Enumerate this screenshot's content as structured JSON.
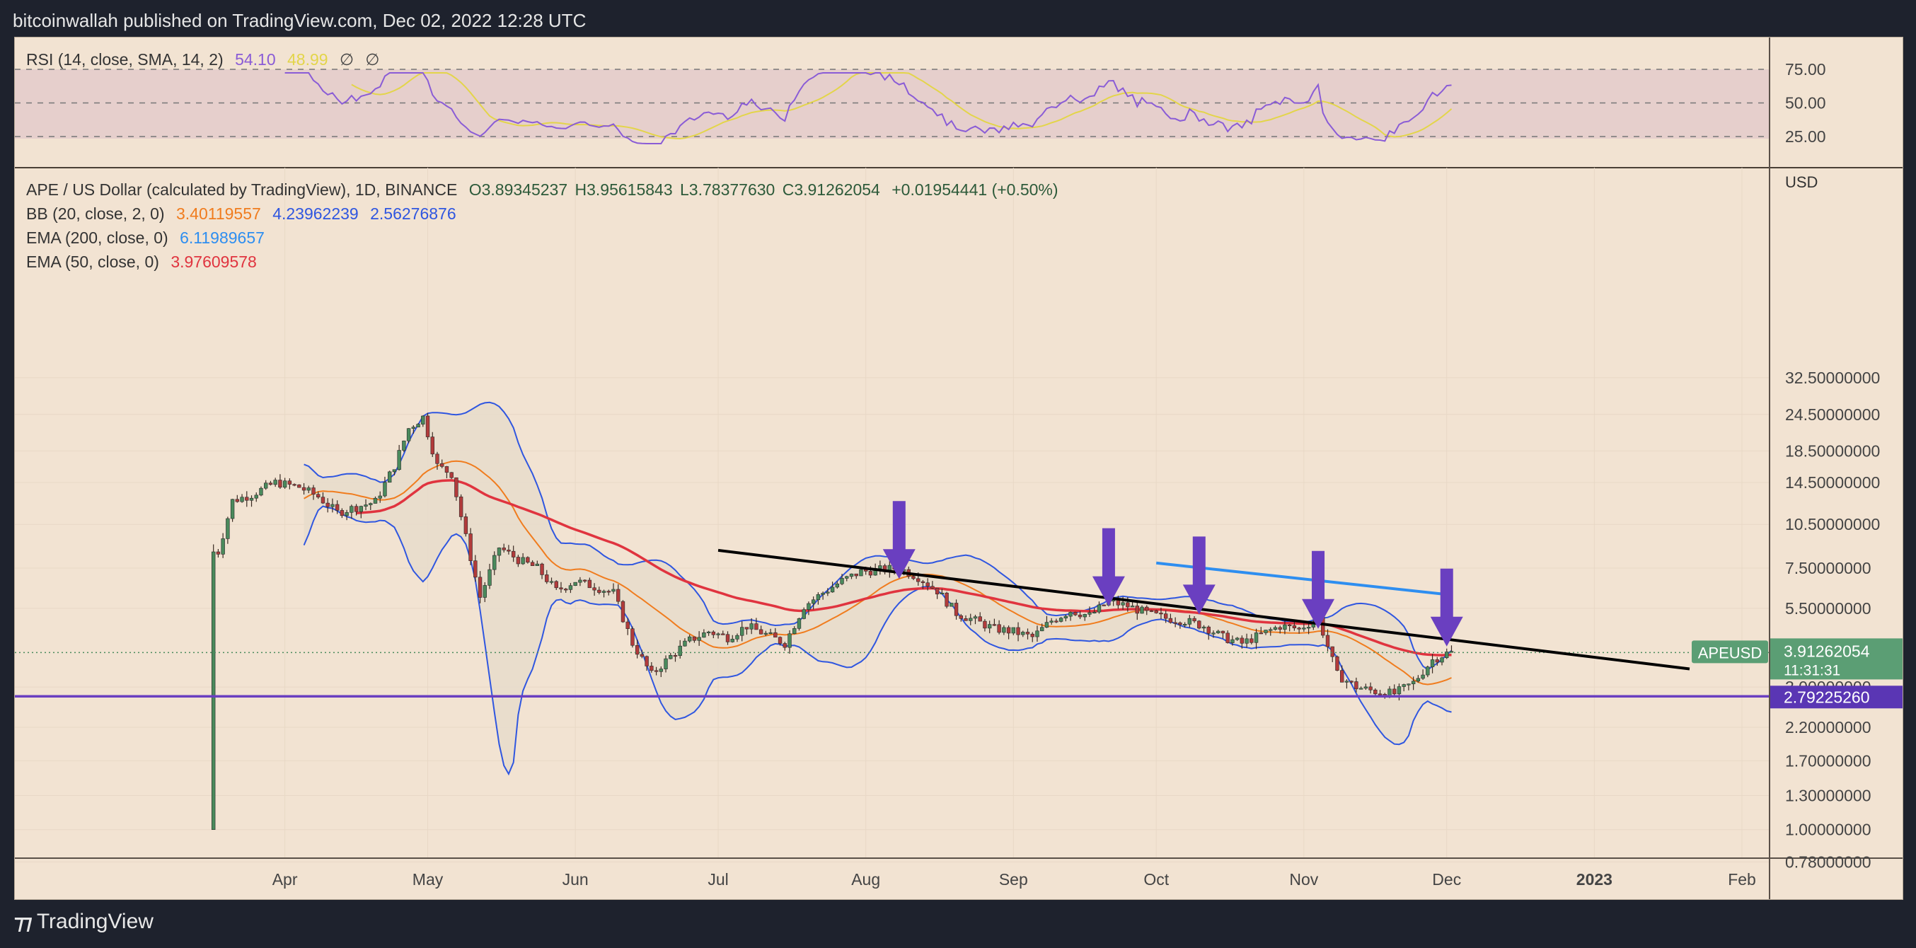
{
  "header": {
    "publisher_line": "bitcoinwallah published on TradingView.com, Dec 02, 2022 12:28 UTC"
  },
  "rsi_pane": {
    "title": "RSI (14, close, SMA, 14, 2)",
    "rsi_value": "54.10",
    "sma_value": "48.99",
    "null_markers": [
      "∅",
      "∅"
    ],
    "levels": [
      "75.00",
      "50.00",
      "25.00"
    ]
  },
  "main_pane": {
    "symbol_line": "APE / US Dollar (calculated by TradingView), 1D, BINANCE",
    "ohlc": {
      "o": "O3.89345237",
      "h": "H3.95615843",
      "l": "L3.78377630",
      "c": "C3.91262054",
      "chg": "+0.01954441 (+0.50%)"
    },
    "bb": {
      "label": "BB (20, close, 2, 0)",
      "basis": "3.40119557",
      "upper": "4.23962239",
      "lower": "2.56276876"
    },
    "ema200": {
      "label": "EMA (200, close, 0)",
      "value": "6.11989657"
    },
    "ema50": {
      "label": "EMA (50, close, 0)",
      "value": "3.97609578"
    },
    "currency": "USD",
    "price_tag": {
      "symbol": "APEUSD",
      "price": "3.91262054",
      "countdown": "11:31:31"
    },
    "support_tag": "2.79225260",
    "y_ticks": [
      "32.50000000",
      "24.50000000",
      "18.50000000",
      "14.50000000",
      "10.50000000",
      "7.50000000",
      "5.50000000",
      "3.00000000",
      "2.20000000",
      "1.70000000",
      "1.30000000",
      "1.00000000",
      "0.78000000"
    ],
    "x_ticks": [
      "Apr",
      "May",
      "Jun",
      "Jul",
      "Aug",
      "Sep",
      "Oct",
      "Nov",
      "Dec",
      "2023",
      "Feb"
    ]
  },
  "colors": {
    "bull": "#4a8a5c",
    "bear": "#b23b3b",
    "bb_band": "#2f56e0",
    "bb_basis": "#f07c1e",
    "ema50": "#e0343f",
    "ema200_line": "#2e8ef0",
    "support": "#6a3fc0",
    "arrow": "#6a3fc0",
    "rsi": "#8a5cd6",
    "rsi_sma": "#e3d54a"
  },
  "footer": {
    "brand": "TradingView"
  },
  "chart_data": {
    "type": "candlestick",
    "title": "APE / US Dollar (calculated by TradingView), 1D, BINANCE",
    "y_scale": "log",
    "ylim": [
      0.72,
      43
    ],
    "x_range": [
      "2022-03-01",
      "2023-02-28"
    ],
    "close_series": [
      [
        "2022-03-17",
        1.0
      ],
      [
        "2022-03-18",
        8.5
      ],
      [
        "2022-03-21",
        12.6
      ],
      [
        "2022-03-25",
        13.2
      ],
      [
        "2022-03-30",
        14.5
      ],
      [
        "2022-04-04",
        14.0
      ],
      [
        "2022-04-08",
        13.0
      ],
      [
        "2022-04-12",
        11.5
      ],
      [
        "2022-04-16",
        12.0
      ],
      [
        "2022-04-20",
        12.5
      ],
      [
        "2022-04-24",
        16.5
      ],
      [
        "2022-04-27",
        22.0
      ],
      [
        "2022-04-30",
        24.0
      ],
      [
        "2022-05-03",
        16.5
      ],
      [
        "2022-05-06",
        15.5
      ],
      [
        "2022-05-09",
        9.5
      ],
      [
        "2022-05-12",
        6.0
      ],
      [
        "2022-05-16",
        8.8
      ],
      [
        "2022-05-20",
        8.0
      ],
      [
        "2022-05-24",
        7.5
      ],
      [
        "2022-05-28",
        6.3
      ],
      [
        "2022-06-01",
        6.8
      ],
      [
        "2022-06-05",
        6.5
      ],
      [
        "2022-06-09",
        6.2
      ],
      [
        "2022-06-13",
        4.2
      ],
      [
        "2022-06-17",
        3.3
      ],
      [
        "2022-06-21",
        3.8
      ],
      [
        "2022-06-25",
        4.3
      ],
      [
        "2022-06-29",
        4.6
      ],
      [
        "2022-07-03",
        4.4
      ],
      [
        "2022-07-07",
        4.8
      ],
      [
        "2022-07-11",
        4.5
      ],
      [
        "2022-07-15",
        4.2
      ],
      [
        "2022-07-19",
        5.6
      ],
      [
        "2022-07-23",
        6.2
      ],
      [
        "2022-07-27",
        6.8
      ],
      [
        "2022-07-31",
        7.3
      ],
      [
        "2022-08-04",
        7.4
      ],
      [
        "2022-08-08",
        7.5
      ],
      [
        "2022-08-12",
        7.0
      ],
      [
        "2022-08-16",
        6.3
      ],
      [
        "2022-08-20",
        5.3
      ],
      [
        "2022-08-24",
        5.0
      ],
      [
        "2022-08-28",
        4.7
      ],
      [
        "2022-09-01",
        4.6
      ],
      [
        "2022-09-05",
        4.4
      ],
      [
        "2022-09-09",
        5.0
      ],
      [
        "2022-09-13",
        5.4
      ],
      [
        "2022-09-17",
        5.2
      ],
      [
        "2022-09-21",
        5.8
      ],
      [
        "2022-09-25",
        5.6
      ],
      [
        "2022-09-29",
        5.3
      ],
      [
        "2022-10-03",
        5.1
      ],
      [
        "2022-10-07",
        5.0
      ],
      [
        "2022-10-11",
        4.8
      ],
      [
        "2022-10-15",
        4.4
      ],
      [
        "2022-10-19",
        4.2
      ],
      [
        "2022-10-23",
        4.5
      ],
      [
        "2022-10-27",
        4.8
      ],
      [
        "2022-10-31",
        4.7
      ],
      [
        "2022-11-04",
        5.1
      ],
      [
        "2022-11-08",
        3.3
      ],
      [
        "2022-11-12",
        3.0
      ],
      [
        "2022-11-16",
        2.9
      ],
      [
        "2022-11-20",
        2.85
      ],
      [
        "2022-11-24",
        3.1
      ],
      [
        "2022-11-28",
        3.7
      ],
      [
        "2022-12-01",
        3.89
      ],
      [
        "2022-12-02",
        3.91
      ]
    ],
    "indicators": {
      "BB (20, close, 2, 0)": {
        "basis": 3.40119557,
        "upper": 4.23962239,
        "lower": 2.56276876
      },
      "EMA (200, close, 0)": 6.11989657,
      "EMA (50, close, 0)": 3.97609578
    },
    "rsi": {
      "label": "RSI (14, close, SMA, 14, 2)",
      "value": 54.1,
      "sma": 48.99,
      "levels": [
        75,
        50,
        25
      ]
    },
    "annotations": {
      "resistance_line": [
        [
          "2022-07-01",
          8.6
        ],
        [
          "2023-01-21",
          3.45
        ]
      ],
      "ema200_segment": [
        [
          "2022-10-01",
          7.8
        ],
        [
          "2022-12-01",
          6.12
        ]
      ],
      "support_level": 2.7922526,
      "down_arrows": [
        "2022-08-08",
        "2022-09-21",
        "2022-10-10",
        "2022-11-04",
        "2022-12-01"
      ]
    }
  }
}
